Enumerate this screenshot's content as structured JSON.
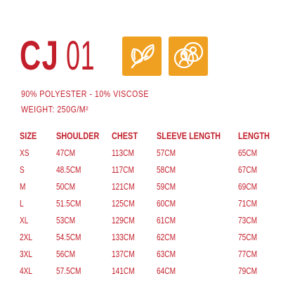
{
  "product": {
    "code_bold": "CJ",
    "code_light": "01"
  },
  "icons": [
    "eco-leaves-icon",
    "women-men-icon"
  ],
  "specs": {
    "composition": "90% POLYESTER - 10% VISCOSE",
    "weight": "WEIGHT: 250G/M²"
  },
  "colors": {
    "accent": "#c21f2b",
    "icon_bg": "#f0a020"
  },
  "size_table": {
    "headers": [
      "SIZE",
      "SHOULDER",
      "CHEST",
      "SLEEVE LENGTH",
      "LENGTH"
    ],
    "rows": [
      [
        "XS",
        "47CM",
        "113CM",
        "57CM",
        "65CM"
      ],
      [
        "S",
        "48.5CM",
        "117CM",
        "58CM",
        "67CM"
      ],
      [
        "M",
        "50CM",
        "121CM",
        "59CM",
        "69CM"
      ],
      [
        "L",
        "51.5CM",
        "125CM",
        "60CM",
        "71CM"
      ],
      [
        "XL",
        "53CM",
        "129CM",
        "61CM",
        "73CM"
      ],
      [
        "2XL",
        "54.5CM",
        "133CM",
        "62CM",
        "75CM"
      ],
      [
        "3XL",
        "56CM",
        "137CM",
        "63CM",
        "77CM"
      ],
      [
        "4XL",
        "57.5CM",
        "141CM",
        "64CM",
        "79CM"
      ]
    ]
  }
}
